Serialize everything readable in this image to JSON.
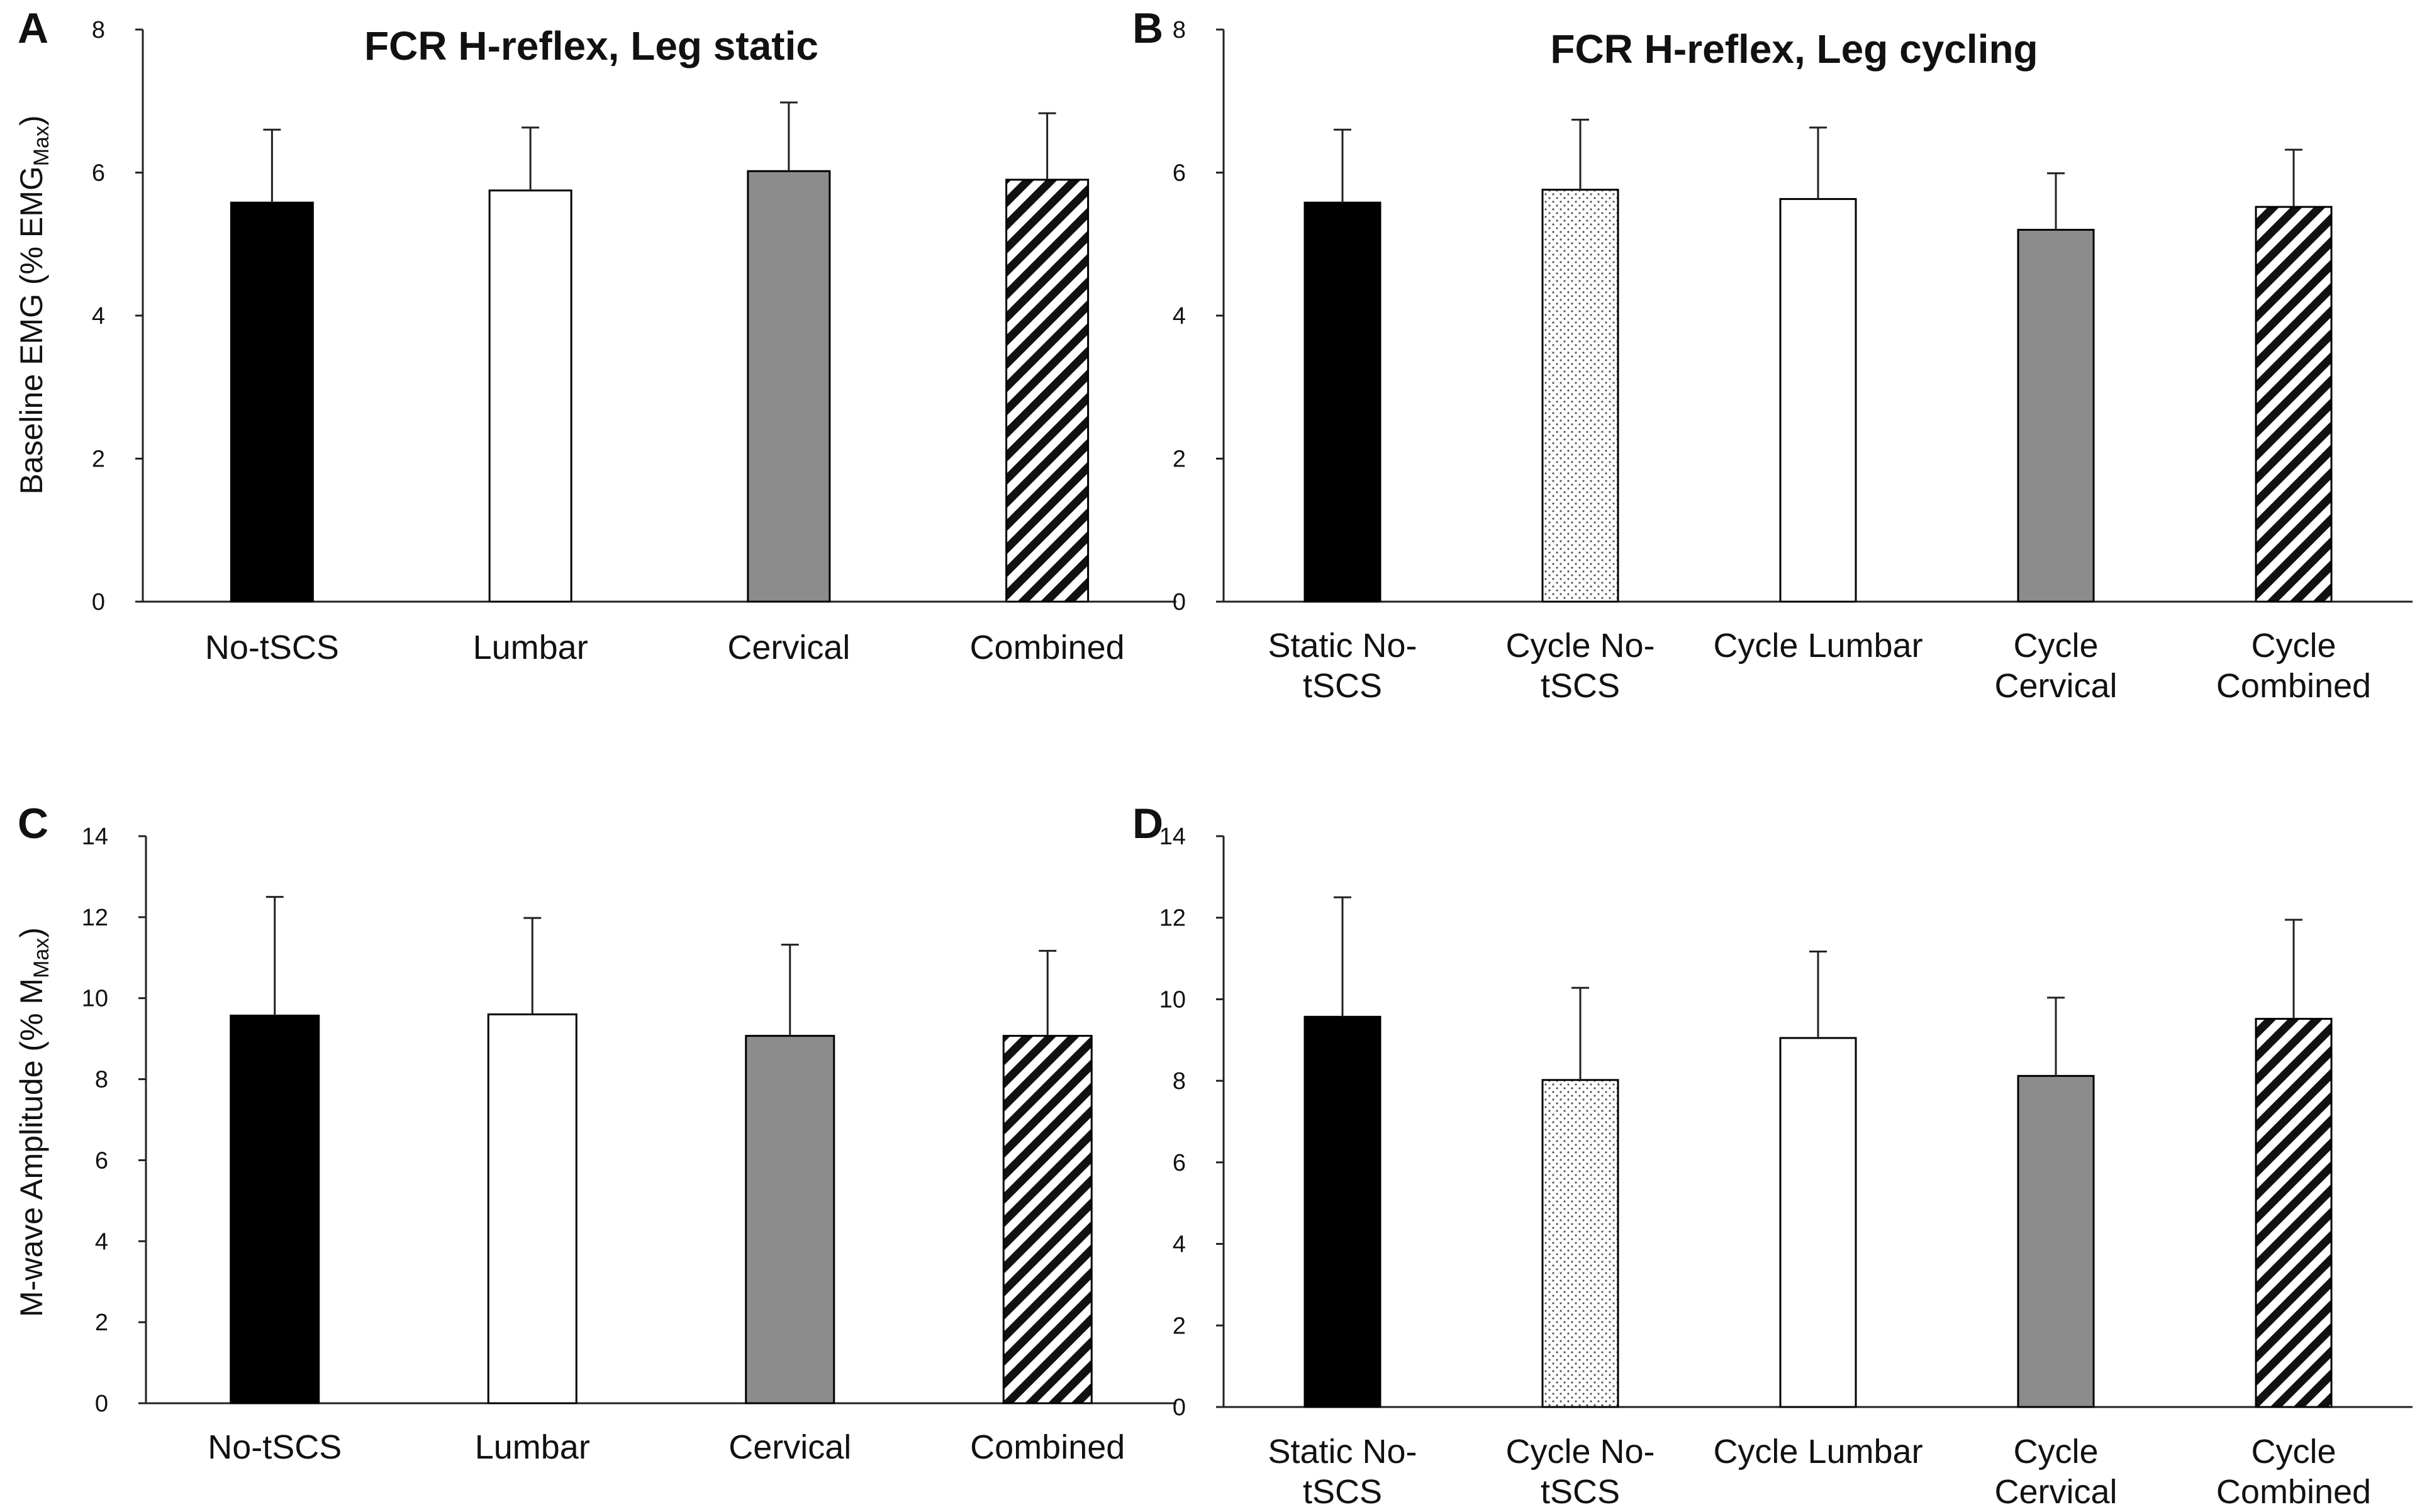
{
  "chart_data": [
    {
      "panel": "A",
      "type": "bar",
      "title": "FCR H-reflex, Leg static",
      "ylabel": "Baseline EMG (% EMG",
      "ylabel_sub": "Max",
      "ylabel_end": ")",
      "xlabel": "",
      "ylim": [
        0,
        8
      ],
      "yticks": [
        "0",
        "2",
        "4",
        "6",
        "8"
      ],
      "categories": [
        [
          "No-tSCS"
        ],
        [
          "Lumbar"
        ],
        [
          "Cervical"
        ],
        [
          "Combined"
        ]
      ],
      "values": [
        5.58,
        5.75,
        6.02,
        5.9
      ],
      "errors": [
        1.02,
        0.88,
        0.96,
        0.93
      ],
      "fills": [
        "solid-black",
        "white",
        "gray",
        "hatch"
      ]
    },
    {
      "panel": "B",
      "type": "bar",
      "title": "FCR H-reflex, Leg cycling",
      "ylabel": "",
      "xlabel": "",
      "ylim": [
        0,
        8
      ],
      "yticks": [
        "0",
        "2",
        "4",
        "6",
        "8"
      ],
      "categories": [
        [
          "Static No-",
          "tSCS"
        ],
        [
          "Cycle No-",
          "tSCS"
        ],
        [
          "Cycle Lumbar"
        ],
        [
          "Cycle",
          "Cervical"
        ],
        [
          "Cycle",
          "Combined"
        ]
      ],
      "values": [
        5.58,
        5.76,
        5.63,
        5.2,
        5.52
      ],
      "errors": [
        1.02,
        0.98,
        1.0,
        0.79,
        0.8
      ],
      "fills": [
        "solid-black",
        "dots",
        "white",
        "gray",
        "hatch"
      ]
    },
    {
      "panel": "C",
      "type": "bar",
      "title": "",
      "ylabel": "M-wave Amplitude (% M",
      "ylabel_sub": "Max",
      "ylabel_end": ")",
      "xlabel": "",
      "ylim": [
        0,
        14
      ],
      "yticks": [
        "0",
        "2",
        "4",
        "6",
        "8",
        "10",
        "12",
        "14"
      ],
      "categories": [
        [
          "No-tSCS"
        ],
        [
          "Lumbar"
        ],
        [
          "Cervical"
        ],
        [
          "Combined"
        ]
      ],
      "values": [
        9.57,
        9.6,
        9.07,
        9.07
      ],
      "errors": [
        2.93,
        2.38,
        2.25,
        2.1
      ],
      "fills": [
        "solid-black",
        "white",
        "gray",
        "hatch"
      ]
    },
    {
      "panel": "D",
      "type": "bar",
      "title": "",
      "ylabel": "",
      "xlabel": "",
      "ylim": [
        0,
        14
      ],
      "yticks": [
        "0",
        "2",
        "4",
        "6",
        "8",
        "10",
        "12",
        "14"
      ],
      "categories": [
        [
          "Static No-",
          "tSCS"
        ],
        [
          "Cycle No-",
          "tSCS"
        ],
        [
          "Cycle Lumbar"
        ],
        [
          "Cycle",
          "Cervical"
        ],
        [
          "Cycle",
          "Combined"
        ]
      ],
      "values": [
        9.57,
        8.02,
        9.05,
        8.12,
        9.52
      ],
      "errors": [
        2.93,
        2.26,
        2.12,
        1.92,
        2.43
      ],
      "fills": [
        "solid-black",
        "dots",
        "white",
        "gray",
        "hatch"
      ]
    }
  ]
}
